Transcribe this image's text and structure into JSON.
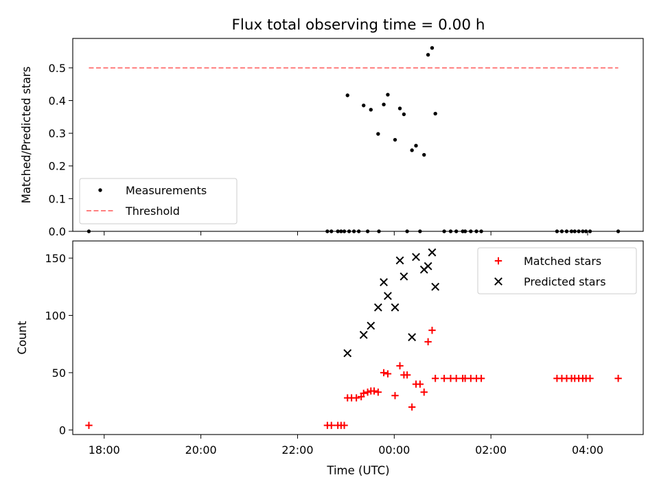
{
  "figure_title": "Flux total observing time = 0.00 h",
  "xlabel": "Time (UTC)",
  "chart_data": [
    {
      "type": "scatter",
      "title": "",
      "ylabel": "Matched/Predicted stars",
      "xlim": [
        "17:21",
        "05:09"
      ],
      "ylim": [
        0,
        0.59
      ],
      "yticks": [
        "0.0",
        "0.1",
        "0.2",
        "0.3",
        "0.4",
        "0.5"
      ],
      "xticks": [
        "18:00",
        "20:00",
        "22:00",
        "00:00",
        "02:00",
        "04:00"
      ],
      "show_xtick_labels": false,
      "grid": false,
      "legend": {
        "placement": "lower-left",
        "entries": [
          "Measurements",
          "Threshold"
        ]
      },
      "colors": {
        "measurements": "#000000",
        "threshold": "#ff7f7f"
      },
      "series": [
        {
          "name": "Measurements",
          "style": "dot",
          "points": [
            [
              "17:41",
              0.0
            ],
            [
              "22:37",
              0.0
            ],
            [
              "22:42",
              0.0
            ],
            [
              "22:50",
              0.0
            ],
            [
              "22:54",
              0.0
            ],
            [
              "22:58",
              0.0
            ],
            [
              "23:04",
              0.0
            ],
            [
              "23:10",
              0.0
            ],
            [
              "23:16",
              0.0
            ],
            [
              "23:27",
              0.0
            ],
            [
              "23:41",
              0.0
            ],
            [
              "23:02",
              0.416
            ],
            [
              "23:22",
              0.385
            ],
            [
              "23:31",
              0.372
            ],
            [
              "23:40",
              0.298
            ],
            [
              "23:47",
              0.388
            ],
            [
              "23:52",
              0.418
            ],
            [
              "00:01",
              0.28
            ],
            [
              "00:07",
              0.376
            ],
            [
              "00:12",
              0.358
            ],
            [
              "00:16",
              0.0
            ],
            [
              "00:22",
              0.248
            ],
            [
              "00:27",
              0.262
            ],
            [
              "00:32",
              0.0
            ],
            [
              "00:37",
              0.234
            ],
            [
              "00:42",
              0.54
            ],
            [
              "00:47",
              0.561
            ],
            [
              "00:51",
              0.36
            ],
            [
              "01:02",
              0.0
            ],
            [
              "01:10",
              0.0
            ],
            [
              "01:17",
              0.0
            ],
            [
              "01:25",
              0.0
            ],
            [
              "01:28",
              0.0
            ],
            [
              "01:35",
              0.0
            ],
            [
              "01:42",
              0.0
            ],
            [
              "01:48",
              0.0
            ],
            [
              "03:22",
              0.0
            ],
            [
              "03:28",
              0.0
            ],
            [
              "03:34",
              0.0
            ],
            [
              "03:40",
              0.0
            ],
            [
              "03:44",
              0.0
            ],
            [
              "03:49",
              0.0
            ],
            [
              "03:54",
              0.0
            ],
            [
              "03:58",
              0.0
            ],
            [
              "04:03",
              0.0
            ],
            [
              "04:38",
              0.0
            ]
          ]
        },
        {
          "name": "Threshold",
          "style": "dashed-line",
          "points": [
            [
              "17:41",
              0.5
            ],
            [
              "04:38",
              0.5
            ]
          ]
        }
      ]
    },
    {
      "type": "scatter",
      "title": "",
      "ylabel": "Count",
      "xlim": [
        "17:21",
        "05:09"
      ],
      "ylim": [
        -4,
        165
      ],
      "yticks": [
        "0",
        "50",
        "100",
        "150"
      ],
      "xticks": [
        "18:00",
        "20:00",
        "22:00",
        "00:00",
        "02:00",
        "04:00"
      ],
      "show_xtick_labels": true,
      "grid": false,
      "legend": {
        "placement": "top-right",
        "entries": [
          "Matched stars",
          "Predicted stars"
        ]
      },
      "colors": {
        "matched": "#ff0000",
        "predicted": "#000000"
      },
      "series": [
        {
          "name": "Matched stars",
          "marker": "plus",
          "points": [
            [
              "17:41",
              4
            ],
            [
              "22:37",
              4
            ],
            [
              "22:42",
              4
            ],
            [
              "22:50",
              4
            ],
            [
              "22:54",
              4
            ],
            [
              "22:58",
              4
            ],
            [
              "23:02",
              28
            ],
            [
              "23:07",
              28
            ],
            [
              "23:13",
              28
            ],
            [
              "23:19",
              29
            ],
            [
              "23:22",
              32
            ],
            [
              "23:27",
              33
            ],
            [
              "23:31",
              34
            ],
            [
              "23:35",
              34
            ],
            [
              "23:40",
              33
            ],
            [
              "23:47",
              50
            ],
            [
              "23:52",
              49
            ],
            [
              "00:01",
              30
            ],
            [
              "00:07",
              56
            ],
            [
              "00:12",
              48
            ],
            [
              "00:16",
              48
            ],
            [
              "00:22",
              20
            ],
            [
              "00:27",
              40
            ],
            [
              "00:32",
              40
            ],
            [
              "00:37",
              33
            ],
            [
              "00:42",
              77
            ],
            [
              "00:47",
              87
            ],
            [
              "00:51",
              45
            ],
            [
              "01:02",
              45
            ],
            [
              "01:10",
              45
            ],
            [
              "01:17",
              45
            ],
            [
              "01:25",
              45
            ],
            [
              "01:28",
              45
            ],
            [
              "01:35",
              45
            ],
            [
              "01:42",
              45
            ],
            [
              "01:48",
              45
            ],
            [
              "03:22",
              45
            ],
            [
              "03:28",
              45
            ],
            [
              "03:34",
              45
            ],
            [
              "03:40",
              45
            ],
            [
              "03:44",
              45
            ],
            [
              "03:49",
              45
            ],
            [
              "03:54",
              45
            ],
            [
              "03:58",
              45
            ],
            [
              "04:03",
              45
            ],
            [
              "04:38",
              45
            ]
          ]
        },
        {
          "name": "Predicted stars",
          "marker": "x",
          "points": [
            [
              "23:02",
              67
            ],
            [
              "23:22",
              83
            ],
            [
              "23:31",
              91
            ],
            [
              "23:40",
              107
            ],
            [
              "23:47",
              129
            ],
            [
              "23:52",
              117
            ],
            [
              "00:01",
              107
            ],
            [
              "00:07",
              148
            ],
            [
              "00:12",
              134
            ],
            [
              "00:22",
              81
            ],
            [
              "00:27",
              151
            ],
            [
              "00:37",
              140
            ],
            [
              "00:42",
              143
            ],
            [
              "00:47",
              155
            ],
            [
              "00:51",
              125
            ]
          ]
        }
      ]
    }
  ]
}
